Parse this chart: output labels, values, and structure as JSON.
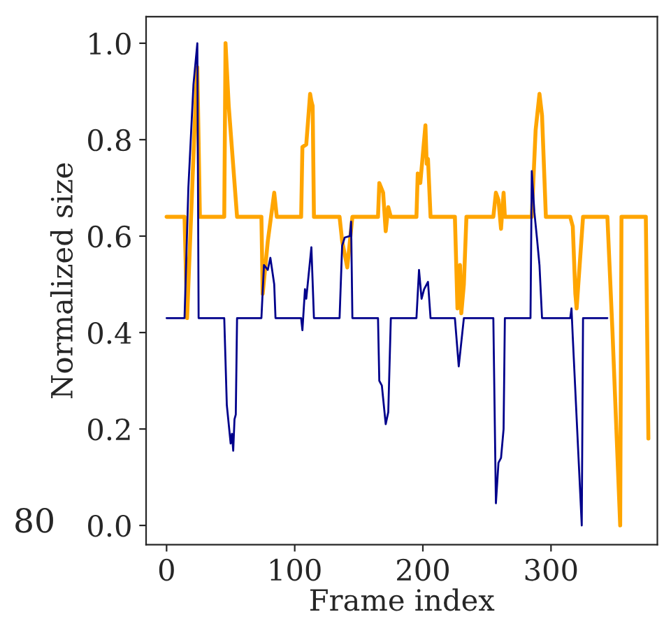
{
  "chart_data": {
    "type": "line",
    "xlabel": "Frame index",
    "ylabel": "Normalized size",
    "annotations": [
      "80"
    ],
    "xlim": [
      -16,
      383
    ],
    "ylim": [
      -0.04,
      1.055
    ],
    "xticks": [
      0,
      100,
      200,
      300
    ],
    "yticks": [
      {
        "value": 0,
        "label": "0.0"
      },
      {
        "value": 0.2,
        "label": "0.2"
      },
      {
        "value": 0.4,
        "label": "0.4"
      },
      {
        "value": 0.6,
        "label": "0.6"
      },
      {
        "value": 0.8,
        "label": "0.8"
      },
      {
        "value": 1.0,
        "label": "1.0"
      }
    ],
    "grid": false,
    "legend": false,
    "marker": "none",
    "line_style": "solid",
    "series": [
      {
        "color": "#ffa500",
        "x": [
          0,
          14,
          16,
          20,
          23,
          24,
          26,
          45,
          46,
          48.5,
          55,
          74,
          75,
          79,
          84,
          86,
          105,
          106,
          109,
          112,
          113,
          114,
          115,
          135,
          137,
          141,
          145,
          165,
          166,
          169,
          171,
          173,
          175,
          195,
          196,
          198,
          202,
          203,
          204,
          206,
          225,
          227,
          229,
          230,
          232,
          234,
          255,
          257,
          259,
          261,
          263,
          264,
          285,
          286,
          288,
          291,
          293,
          296,
          315,
          317,
          319,
          320,
          325,
          344,
          348,
          354,
          355,
          374,
          376
        ],
        "values": [
          0.64,
          0.64,
          0.43,
          0.7,
          0.9,
          0.95,
          0.64,
          0.64,
          1.0,
          0.87,
          0.64,
          0.64,
          0.48,
          0.59,
          0.69,
          0.64,
          0.64,
          0.785,
          0.79,
          0.895,
          0.88,
          0.87,
          0.64,
          0.64,
          0.59,
          0.535,
          0.64,
          0.64,
          0.71,
          0.69,
          0.61,
          0.66,
          0.64,
          0.64,
          0.73,
          0.71,
          0.83,
          0.75,
          0.76,
          0.64,
          0.64,
          0.45,
          0.54,
          0.44,
          0.5,
          0.64,
          0.64,
          0.69,
          0.675,
          0.615,
          0.69,
          0.64,
          0.64,
          0.7,
          0.82,
          0.895,
          0.85,
          0.64,
          0.64,
          0.62,
          0.48,
          0.45,
          0.64,
          0.64,
          0.4,
          0.0,
          0.64,
          0.64,
          0.18
        ]
      },
      {
        "color": "#00008b",
        "x": [
          0,
          14,
          17,
          21,
          24,
          25,
          45,
          47,
          50,
          51,
          52,
          53,
          54,
          55,
          74,
          76,
          79,
          81,
          84,
          85,
          105,
          106,
          108,
          109,
          113,
          115,
          135,
          137,
          139,
          143,
          144,
          145,
          165,
          166,
          168,
          171,
          173,
          175,
          195,
          197,
          199,
          201,
          204,
          206,
          225,
          228,
          232,
          255,
          257,
          259,
          261,
          263,
          264,
          284,
          285,
          287,
          289,
          291,
          293,
          315,
          316,
          317,
          324,
          325,
          344
        ],
        "values": [
          0.43,
          0.43,
          0.7,
          0.915,
          1.0,
          0.43,
          0.43,
          0.25,
          0.17,
          0.19,
          0.155,
          0.22,
          0.23,
          0.43,
          0.43,
          0.54,
          0.53,
          0.555,
          0.5,
          0.43,
          0.43,
          0.405,
          0.49,
          0.47,
          0.577,
          0.43,
          0.43,
          0.58,
          0.597,
          0.6,
          0.63,
          0.43,
          0.43,
          0.3,
          0.29,
          0.21,
          0.235,
          0.43,
          0.43,
          0.53,
          0.47,
          0.49,
          0.505,
          0.43,
          0.43,
          0.33,
          0.43,
          0.43,
          0.046,
          0.13,
          0.14,
          0.2,
          0.43,
          0.43,
          0.735,
          0.65,
          0.597,
          0.54,
          0.43,
          0.43,
          0.45,
          0.39,
          0.0,
          0.43,
          0.43
        ]
      }
    ]
  }
}
